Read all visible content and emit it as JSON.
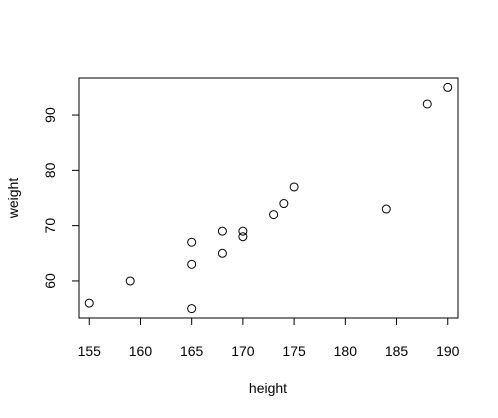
{
  "chart_data": {
    "type": "scatter",
    "title": "",
    "xlabel": "height",
    "ylabel": "weight",
    "xlim": [
      154,
      191
    ],
    "ylim": [
      53.3,
      96.7
    ],
    "x_ticks": [
      155,
      160,
      165,
      170,
      175,
      180,
      185,
      190
    ],
    "y_ticks": [
      60,
      70,
      80,
      90
    ],
    "grid": false,
    "legend": "none",
    "marker": "open-circle",
    "colors": {
      "axis": "#000000",
      "point_stroke": "#000000",
      "background": "#ffffff"
    },
    "points": [
      {
        "x": 155,
        "y": 56
      },
      {
        "x": 159,
        "y": 60
      },
      {
        "x": 165,
        "y": 55
      },
      {
        "x": 165,
        "y": 63
      },
      {
        "x": 165,
        "y": 67
      },
      {
        "x": 168,
        "y": 65
      },
      {
        "x": 168,
        "y": 69
      },
      {
        "x": 170,
        "y": 68
      },
      {
        "x": 170,
        "y": 69
      },
      {
        "x": 173,
        "y": 72
      },
      {
        "x": 174,
        "y": 74
      },
      {
        "x": 175,
        "y": 77
      },
      {
        "x": 184,
        "y": 73
      },
      {
        "x": 188,
        "y": 92
      },
      {
        "x": 190,
        "y": 95
      }
    ]
  }
}
